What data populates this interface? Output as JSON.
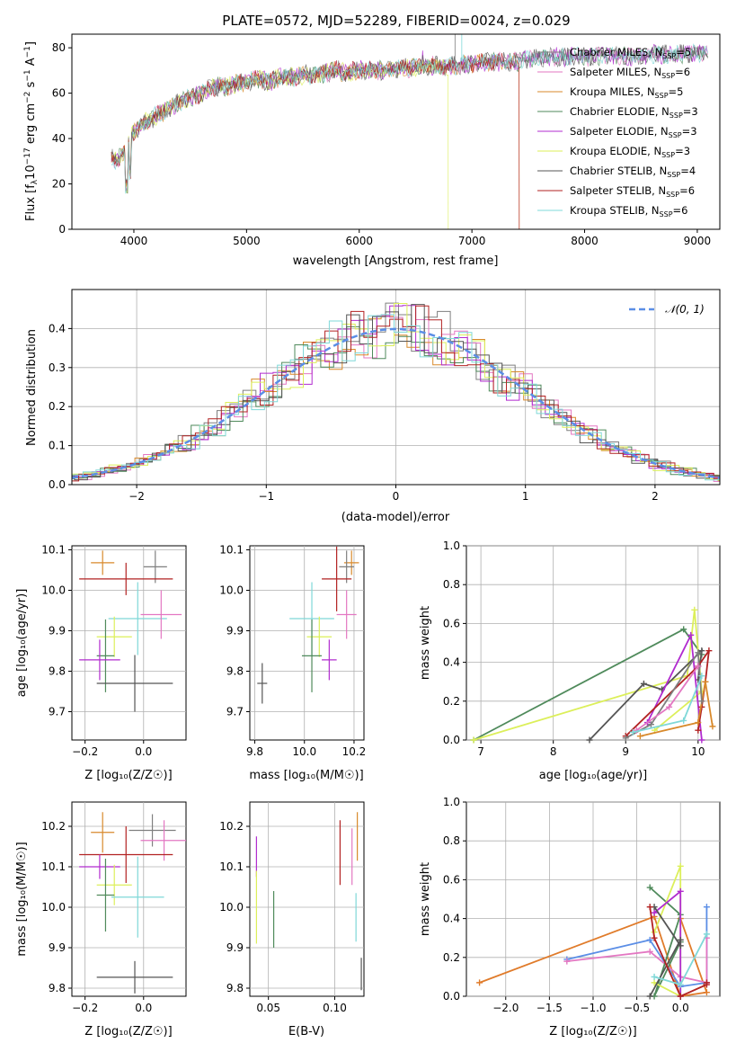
{
  "title": "PLATE=0572, MJD=52289, FIBERID=0024, z=0.029",
  "colors": {
    "Chabrier MILES": "#7f7f7f",
    "Salpeter MILES": "#e377c2",
    "Kroupa MILES": "#d8892b",
    "Chabrier ELODIE": "#4f8a5b",
    "Salpeter ELODIE": "#b12bcf",
    "Kroupa ELODIE": "#dcef5a",
    "Chabrier STELIB": "#555555",
    "Salpeter STELIB": "#b22222",
    "Kroupa STELIB": "#7fd8d8",
    "model_blue": "#5b8ee6",
    "model_orange": "#e07b2a"
  },
  "chart_data": [
    {
      "id": "spectrum",
      "type": "line",
      "title": "PLATE=0572, MJD=52289, FIBERID=0024, z=0.029",
      "xlabel": "wavelength [Angstrom, rest frame]",
      "ylabel_main": "Flux [f",
      "ylabel_sub": "λ",
      "ylabel_rest": "10",
      "ylabel_exp1": "−17",
      "ylabel_units": " erg cm",
      "ylabel_exp2": "−2",
      "ylabel_s": " s",
      "ylabel_exp3": "−1",
      "ylabel_a": " A",
      "ylabel_exp4": "−1",
      "ylabel_end": "]",
      "xlim": [
        3450,
        9200
      ],
      "ylim": [
        0,
        86
      ],
      "xticks": [
        4000,
        5000,
        6000,
        7000,
        8000,
        9000
      ],
      "yticks": [
        0,
        20,
        40,
        60,
        80
      ],
      "continuum_x": [
        3800,
        3850,
        3900,
        4000,
        4100,
        4200,
        4300,
        4400,
        4500,
        4600,
        4700,
        4800,
        4900,
        5000,
        5100,
        5200,
        5300,
        5400,
        5500,
        5600,
        5700,
        5800,
        5900,
        6000,
        6200,
        6400,
        6600,
        6800,
        7000,
        7200,
        7400,
        7600,
        7800,
        8000,
        8200,
        8400,
        8600,
        8800,
        9000,
        9100
      ],
      "continuum_y": [
        32,
        30,
        33,
        43,
        47,
        50,
        53,
        56,
        58,
        60,
        63,
        63,
        64,
        65,
        66,
        65,
        67,
        67,
        68,
        68,
        69,
        70,
        69,
        70,
        70,
        71,
        72,
        72,
        73,
        74,
        74,
        76,
        76,
        76,
        77,
        76,
        77,
        77,
        78,
        78
      ],
      "series": [
        {
          "name": "Chabrier MILES, N",
          "sub": "SSP",
          "tail": "=5"
        },
        {
          "name": "Salpeter MILES, N",
          "sub": "SSP",
          "tail": "=6"
        },
        {
          "name": "Kroupa MILES, N",
          "sub": "SSP",
          "tail": "=5"
        },
        {
          "name": "Chabrier ELODIE, N",
          "sub": "SSP",
          "tail": "=3"
        },
        {
          "name": "Salpeter ELODIE, N",
          "sub": "SSP",
          "tail": "=3"
        },
        {
          "name": "Kroupa ELODIE, N",
          "sub": "SSP",
          "tail": "=3"
        },
        {
          "name": "Chabrier STELIB, N",
          "sub": "SSP",
          "tail": "=4"
        },
        {
          "name": "Salpeter STELIB, N",
          "sub": "SSP",
          "tail": "=6"
        },
        {
          "name": "Kroupa STELIB, N",
          "sub": "SSP",
          "tail": "=6"
        }
      ],
      "legend_position": "right",
      "grid": false
    },
    {
      "id": "residuals",
      "type": "line",
      "xlabel": "(data-model)/error",
      "ylabel": "Normed distribution",
      "xlim": [
        -2.5,
        2.5
      ],
      "ylim": [
        0,
        0.5
      ],
      "xticks": [
        -2,
        -1,
        0,
        1,
        2
      ],
      "yticks": [
        0.0,
        0.1,
        0.2,
        0.3,
        0.4
      ],
      "xtick_labels": [
        "−2",
        "−1",
        "0",
        "1",
        "2"
      ],
      "ytick_labels": [
        "0.0",
        "0.1",
        "0.2",
        "0.3",
        "0.4"
      ],
      "model_label": "𝒩(0, 1)",
      "bin_width": 0.1,
      "grid": true,
      "legend_position": "upper right"
    },
    {
      "id": "age-vs-Z",
      "type": "scatter",
      "xlabel": "Z [log₁₀(Z/Z☉)]",
      "ylabel": "age  [log₁₀(age/yr)]",
      "xlim": [
        -0.245,
        0.145
      ],
      "ylim": [
        9.63,
        10.11
      ],
      "xticks": [
        -0.2,
        0.0
      ],
      "yticks": [
        9.7,
        9.8,
        9.9,
        10.0,
        10.1
      ],
      "xtick_labels": [
        "−0.2",
        "0.0"
      ],
      "ytick_labels": [
        "9.7",
        "9.8",
        "9.9",
        "10.0",
        "10.1"
      ],
      "points": [
        {
          "series": "Kroupa MILES",
          "x": -0.14,
          "xerr": 0.04,
          "y": 10.068,
          "yerr": 0.03
        },
        {
          "series": "Chabrier MILES",
          "x": 0.04,
          "xerr": 0.04,
          "y": 10.058,
          "yerr": 0.04
        },
        {
          "series": "Salpeter STELIB",
          "x": -0.06,
          "xerr": 0.16,
          "y": 10.028,
          "yerr": 0.04
        },
        {
          "series": "Kroupa STELIB",
          "x": -0.02,
          "xerr": 0.1,
          "y": 9.93,
          "yerr": 0.09
        },
        {
          "series": "Salpeter MILES",
          "x": 0.06,
          "xerr": 0.07,
          "y": 9.94,
          "yerr": 0.06
        },
        {
          "series": "Kroupa ELODIE",
          "x": -0.1,
          "xerr": 0.06,
          "y": 9.885,
          "yerr": 0.05
        },
        {
          "series": "Chabrier ELODIE",
          "x": -0.13,
          "xerr": 0.03,
          "y": 9.838,
          "yerr": 0.09
        },
        {
          "series": "Salpeter ELODIE",
          "x": -0.15,
          "xerr": 0.07,
          "y": 9.828,
          "yerr": 0.05
        },
        {
          "series": "Chabrier STELIB",
          "x": -0.03,
          "xerr": 0.13,
          "y": 9.77,
          "yerr": 0.07
        }
      ],
      "grid": true
    },
    {
      "id": "age-vs-mass",
      "type": "scatter",
      "xlabel": "mass [log₁₀(M/M☉)]",
      "xlim": [
        9.78,
        10.24
      ],
      "ylim": [
        9.63,
        10.11
      ],
      "xticks": [
        9.8,
        10.0,
        10.2
      ],
      "yticks": [
        9.7,
        9.8,
        9.9,
        10.0,
        10.1
      ],
      "xtick_labels": [
        "9.8",
        "10.0",
        "10.2"
      ],
      "ytick_labels": [
        "9.7",
        "9.8",
        "9.9",
        "10.0",
        "10.1"
      ],
      "points": [
        {
          "series": "Kroupa MILES",
          "x": 10.19,
          "xerr": 0.03,
          "y": 10.068,
          "yerr": 0.03
        },
        {
          "series": "Chabrier MILES",
          "x": 10.17,
          "xerr": 0.03,
          "y": 10.058,
          "yerr": 0.04
        },
        {
          "series": "Salpeter STELIB",
          "x": 10.13,
          "xerr": 0.06,
          "y": 10.028,
          "yerr": 0.08
        },
        {
          "series": "Kroupa STELIB",
          "x": 10.03,
          "xerr": 0.09,
          "y": 9.93,
          "yerr": 0.09
        },
        {
          "series": "Salpeter MILES",
          "x": 10.17,
          "xerr": 0.04,
          "y": 9.94,
          "yerr": 0.06
        },
        {
          "series": "Kroupa ELODIE",
          "x": 10.06,
          "xerr": 0.05,
          "y": 9.885,
          "yerr": 0.05
        },
        {
          "series": "Chabrier ELODIE",
          "x": 10.03,
          "xerr": 0.04,
          "y": 9.838,
          "yerr": 0.09
        },
        {
          "series": "Salpeter ELODIE",
          "x": 10.1,
          "xerr": 0.03,
          "y": 9.828,
          "yerr": 0.05
        },
        {
          "series": "Chabrier STELIB",
          "x": 9.83,
          "xerr": 0.02,
          "y": 9.77,
          "yerr": 0.05
        }
      ],
      "grid": true
    },
    {
      "id": "mass-weight-vs-age",
      "type": "line",
      "xlabel": "age  [log₁₀(age/yr)]",
      "ylabel": "mass weight",
      "xlim": [
        6.8,
        10.3
      ],
      "ylim": [
        0,
        1
      ],
      "xticks": [
        7,
        8,
        9,
        10
      ],
      "yticks": [
        0.0,
        0.2,
        0.4,
        0.6,
        0.8,
        1.0
      ],
      "xtick_labels": [
        "7",
        "8",
        "9",
        "10"
      ],
      "ytick_labels": [
        "0.0",
        "0.2",
        "0.4",
        "0.6",
        "0.8",
        "1.0"
      ],
      "series": [
        {
          "name": "Chabrier ELODIE",
          "x": [
            6.9,
            9.8,
            10.05
          ],
          "y": [
            0.0,
            0.57,
            0.44
          ]
        },
        {
          "name": "Kroupa ELODIE",
          "x": [
            6.9,
            9.85,
            9.95,
            10.05,
            9.4
          ],
          "y": [
            0.0,
            0.33,
            0.67,
            0.25,
            0.05
          ]
        },
        {
          "name": "Chabrier STELIB",
          "x": [
            8.5,
            9.25,
            9.5,
            10.05,
            10.0
          ],
          "y": [
            0.0,
            0.29,
            0.26,
            0.46,
            0.31
          ]
        },
        {
          "name": "Salpeter ELODIE",
          "x": [
            9.3,
            9.9,
            10.05
          ],
          "y": [
            0.09,
            0.54,
            0.0
          ]
        },
        {
          "name": "Salpeter STELIB",
          "x": [
            9.0,
            10.0,
            10.15,
            10.1,
            10.05,
            10.0
          ],
          "y": [
            0.02,
            0.38,
            0.46,
            0.3,
            0.17,
            0.05
          ]
        },
        {
          "name": "Kroupa MILES",
          "x": [
            9.2,
            10.0,
            10.1,
            10.2
          ],
          "y": [
            0.02,
            0.09,
            0.3,
            0.07
          ]
        },
        {
          "name": "Chabrier MILES",
          "x": [
            9.0,
            9.35,
            10.0,
            10.05
          ],
          "y": [
            0.01,
            0.08,
            0.45,
            0.2
          ]
        },
        {
          "name": "Salpeter MILES",
          "x": [
            9.15,
            9.6,
            10.0
          ],
          "y": [
            0.05,
            0.17,
            0.38
          ]
        },
        {
          "name": "Kroupa STELIB",
          "x": [
            9.1,
            9.8,
            10.05
          ],
          "y": [
            0.04,
            0.1,
            0.33
          ]
        }
      ],
      "grid": true
    },
    {
      "id": "mass-vs-Z",
      "type": "scatter",
      "xlabel": "Z [log₁₀(Z/Z☉)]",
      "ylabel": "mass [log₁₀(M/M☉)]",
      "xlim": [
        -0.245,
        0.145
      ],
      "ylim": [
        9.78,
        10.26
      ],
      "xticks": [
        -0.2,
        0.0
      ],
      "yticks": [
        9.8,
        9.9,
        10.0,
        10.1,
        10.2
      ],
      "xtick_labels": [
        "−0.2",
        "0.0"
      ],
      "ytick_labels": [
        "9.8",
        "9.9",
        "10.0",
        "10.1",
        "10.2"
      ],
      "points": [
        {
          "series": "Kroupa MILES",
          "x": -0.14,
          "xerr": 0.04,
          "y": 10.185,
          "yerr": 0.05
        },
        {
          "series": "Chabrier MILES",
          "x": 0.03,
          "xerr": 0.08,
          "y": 10.19,
          "yerr": 0.04
        },
        {
          "series": "Salpeter MILES",
          "x": 0.07,
          "xerr": 0.08,
          "y": 10.165,
          "yerr": 0.05
        },
        {
          "series": "Salpeter STELIB",
          "x": -0.06,
          "xerr": 0.16,
          "y": 10.13,
          "yerr": 0.07
        },
        {
          "series": "Salpeter ELODIE",
          "x": -0.15,
          "xerr": 0.07,
          "y": 10.1,
          "yerr": 0.03
        },
        {
          "series": "Kroupa ELODIE",
          "x": -0.1,
          "xerr": 0.06,
          "y": 10.055,
          "yerr": 0.05
        },
        {
          "series": "Chabrier ELODIE",
          "x": -0.13,
          "xerr": 0.03,
          "y": 10.03,
          "yerr": 0.09
        },
        {
          "series": "Kroupa STELIB",
          "x": -0.02,
          "xerr": 0.09,
          "y": 10.025,
          "yerr": 0.1
        },
        {
          "series": "Chabrier STELIB",
          "x": -0.03,
          "xerr": 0.13,
          "y": 9.827,
          "yerr": 0.04
        }
      ],
      "grid": true
    },
    {
      "id": "mass-vs-EBV",
      "type": "scatter",
      "xlabel": "E(B-V)",
      "xlim": [
        0.036,
        0.122
      ],
      "ylim": [
        9.78,
        10.26
      ],
      "xticks": [
        0.05,
        0.1
      ],
      "yticks": [
        9.8,
        9.9,
        10.0,
        10.1,
        10.2
      ],
      "xtick_labels": [
        "0.05",
        "0.10"
      ],
      "ytick_labels": [
        "9.8",
        "9.9",
        "10.0",
        "10.1",
        "10.2"
      ],
      "points": [
        {
          "series": "Salpeter ELODIE",
          "x": 0.041,
          "y": 10.125,
          "yerr": 0.05
        },
        {
          "series": "Kroupa ELODIE",
          "x": 0.041,
          "y": 10.0,
          "yerr": 0.09
        },
        {
          "series": "Chabrier ELODIE",
          "x": 0.054,
          "y": 9.97,
          "yerr": 0.07
        },
        {
          "series": "Salpeter STELIB",
          "x": 0.104,
          "y": 10.135,
          "yerr": 0.08
        },
        {
          "series": "Salpeter MILES",
          "x": 0.113,
          "y": 10.125,
          "yerr": 0.07
        },
        {
          "series": "Kroupa MILES",
          "x": 0.117,
          "y": 10.175,
          "yerr": 0.06
        },
        {
          "series": "Kroupa STELIB",
          "x": 0.116,
          "y": 9.975,
          "yerr": 0.06
        },
        {
          "series": "Chabrier STELIB",
          "x": 0.12,
          "y": 9.835,
          "yerr": 0.04
        }
      ],
      "grid": true
    },
    {
      "id": "mass-weight-vs-Z",
      "type": "line",
      "xlabel": "Z [log₁₀(Z/Z☉)]",
      "ylabel": "mass weight",
      "xlim": [
        -2.45,
        0.45
      ],
      "ylim": [
        0,
        1
      ],
      "xticks": [
        -2.0,
        -1.5,
        -1.0,
        -0.5,
        0.0
      ],
      "yticks": [
        0.0,
        0.2,
        0.4,
        0.6,
        0.8,
        1.0
      ],
      "xtick_labels": [
        "−2.0",
        "−1.5",
        "−1.0",
        "−0.5",
        "0.0"
      ],
      "ytick_labels": [
        "0.0",
        "0.2",
        "0.4",
        "0.6",
        "0.8",
        "1.0"
      ],
      "series": [
        {
          "name": "model_orange",
          "x": [
            -2.3,
            -0.3,
            0.0,
            0.3,
            0.0
          ],
          "y": [
            0.07,
            0.41,
            0.0,
            0.02,
            0.4
          ]
        },
        {
          "name": "model_blue",
          "x": [
            -1.3,
            -0.35,
            0.0,
            0.3,
            0.3
          ],
          "y": [
            0.19,
            0.29,
            0.05,
            0.07,
            0.46
          ]
        },
        {
          "name": "Salpeter MILES",
          "x": [
            -1.3,
            -0.35,
            0.0,
            0.3,
            0.3
          ],
          "y": [
            0.18,
            0.23,
            0.1,
            0.07,
            0.3
          ]
        },
        {
          "name": "Chabrier ELODIE",
          "x": [
            -0.35,
            0.0,
            -0.3,
            0.0
          ],
          "y": [
            0.56,
            0.42,
            0.0,
            0.28
          ]
        },
        {
          "name": "Kroupa ELODIE",
          "x": [
            -0.3,
            0.0,
            0.0,
            -0.3
          ],
          "y": [
            0.33,
            0.67,
            0.0,
            0.07
          ]
        },
        {
          "name": "Salpeter ELODIE",
          "x": [
            -0.3,
            0.0,
            0.0
          ],
          "y": [
            0.43,
            0.54,
            0.0
          ]
        },
        {
          "name": "Chabrier STELIB",
          "x": [
            -0.35,
            0.0,
            0.0,
            -0.3
          ],
          "y": [
            0.0,
            0.29,
            0.26,
            0.46
          ]
        },
        {
          "name": "Salpeter STELIB",
          "x": [
            -0.35,
            -0.3,
            0.0,
            0.3,
            0.3
          ],
          "y": [
            0.46,
            0.3,
            0.0,
            0.06,
            0.07
          ]
        },
        {
          "name": "Kroupa STELIB",
          "x": [
            -0.3,
            0.0,
            0.3
          ],
          "y": [
            0.1,
            0.06,
            0.32
          ]
        }
      ],
      "grid": true
    }
  ]
}
